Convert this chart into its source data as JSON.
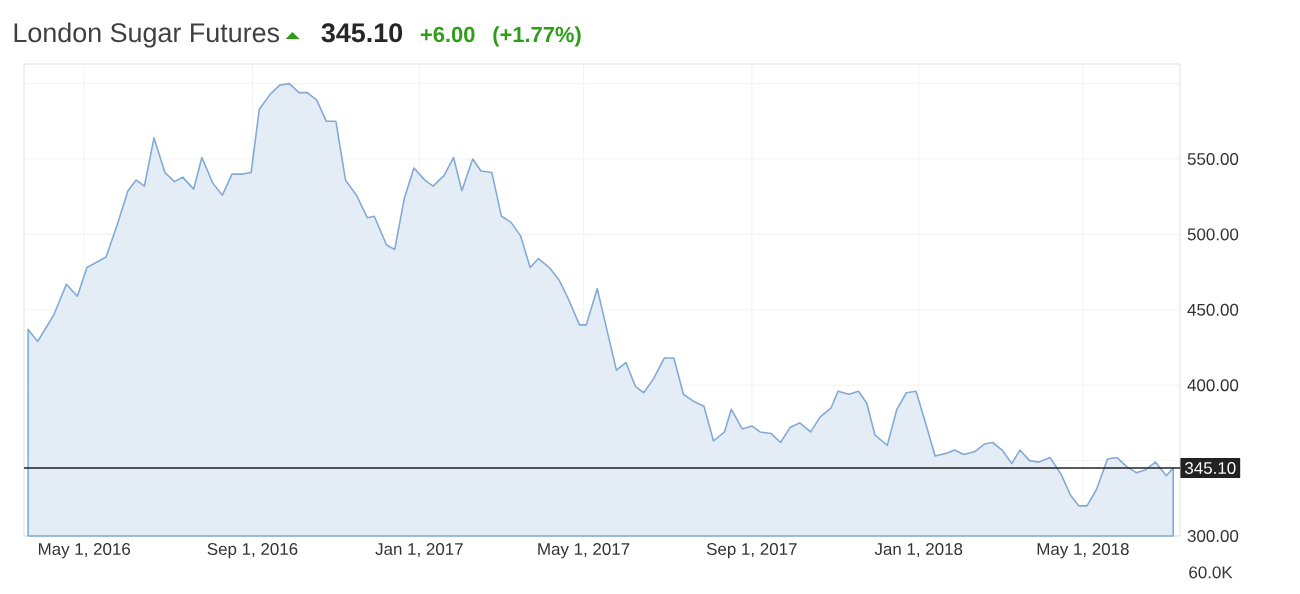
{
  "chart_data": {
    "type": "area",
    "title": "London Sugar Futures",
    "annotations": [
      "345.10",
      "+6.00",
      "(+1.77%)",
      "60.0K"
    ],
    "x": [
      "2016-03-21",
      "2016-03-28",
      "2016-04-09",
      "2016-04-18",
      "2016-04-26",
      "2016-05-03",
      "2016-05-17",
      "2016-05-25",
      "2016-06-02",
      "2016-06-08",
      "2016-06-14",
      "2016-06-21",
      "2016-06-29",
      "2016-07-06",
      "2016-07-12",
      "2016-07-20",
      "2016-07-26",
      "2016-08-03",
      "2016-08-10",
      "2016-08-17",
      "2016-08-25",
      "2016-08-31",
      "2016-09-06",
      "2016-09-14",
      "2016-09-21",
      "2016-09-28",
      "2016-10-05",
      "2016-10-11",
      "2016-10-18",
      "2016-10-25",
      "2016-11-01",
      "2016-11-08",
      "2016-11-16",
      "2016-11-24",
      "2016-11-29",
      "2016-12-08",
      "2016-12-14",
      "2016-12-21",
      "2016-12-28",
      "2017-01-05",
      "2017-01-11",
      "2017-01-19",
      "2017-01-26",
      "2017-02-01",
      "2017-02-09",
      "2017-02-15",
      "2017-02-23",
      "2017-03-02",
      "2017-03-09",
      "2017-03-16",
      "2017-03-23",
      "2017-03-29",
      "2017-04-06",
      "2017-04-13",
      "2017-04-20",
      "2017-04-28",
      "2017-05-03",
      "2017-05-11",
      "2017-05-18",
      "2017-05-25",
      "2017-06-01",
      "2017-06-08",
      "2017-06-14",
      "2017-06-21",
      "2017-06-29",
      "2017-07-06",
      "2017-07-13",
      "2017-07-21",
      "2017-07-28",
      "2017-08-04",
      "2017-08-12",
      "2017-08-17",
      "2017-08-25",
      "2017-09-01",
      "2017-09-07",
      "2017-09-15",
      "2017-09-22",
      "2017-09-29",
      "2017-10-06",
      "2017-10-14",
      "2017-10-21",
      "2017-10-29",
      "2017-11-03",
      "2017-11-11",
      "2017-11-18",
      "2017-11-24",
      "2017-11-30",
      "2017-12-09",
      "2017-12-16",
      "2017-12-23",
      "2017-12-30",
      "2018-01-06",
      "2018-01-13",
      "2018-01-22",
      "2018-01-27",
      "2018-02-03",
      "2018-02-11",
      "2018-02-18",
      "2018-02-24",
      "2018-03-03",
      "2018-03-10",
      "2018-03-16",
      "2018-03-23",
      "2018-03-30",
      "2018-04-07",
      "2018-04-15",
      "2018-04-22",
      "2018-04-28",
      "2018-05-04",
      "2018-05-11",
      "2018-05-19",
      "2018-05-26",
      "2018-06-02",
      "2018-06-09",
      "2018-06-16",
      "2018-06-23",
      "2018-07-01",
      "2018-07-06"
    ],
    "series": [
      {
        "color": "#e4edf6",
        "values": [
          437,
          429,
          447,
          467,
          459,
          478,
          485,
          506,
          529,
          536,
          532,
          564,
          541,
          535,
          538,
          530,
          551,
          534,
          526,
          540,
          540,
          541,
          583,
          593,
          599,
          600,
          594,
          594,
          589,
          575,
          575,
          536,
          526,
          511,
          512,
          493,
          490,
          524,
          544,
          536,
          532,
          539,
          551,
          529,
          550,
          542,
          541,
          512,
          508,
          499,
          478,
          484,
          478,
          470,
          457,
          440,
          440,
          464,
          437,
          410,
          415,
          399,
          395,
          404,
          418,
          418,
          394,
          389,
          386,
          363,
          369,
          384,
          371,
          373,
          369,
          368,
          362,
          372,
          375,
          369,
          379,
          385,
          396,
          394,
          396,
          388,
          367,
          360,
          384,
          395,
          396,
          375,
          353,
          355,
          357,
          354,
          356,
          361,
          362,
          357,
          348,
          357,
          350,
          349,
          352,
          341,
          327,
          320,
          320,
          331,
          351,
          352,
          346,
          342,
          344,
          349,
          340,
          345
        ]
      }
    ],
    "xlim": [
      "2016-03-18",
      "2018-07-11"
    ],
    "xticks": [
      {
        "value": "2016-05-01",
        "label": "May 1, 2016"
      },
      {
        "value": "2016-09-01",
        "label": "Sep 1, 2016"
      },
      {
        "value": "2017-01-01",
        "label": "Jan 1, 2017"
      },
      {
        "value": "2017-05-01",
        "label": "May 1, 2017"
      },
      {
        "value": "2017-09-01",
        "label": "Sep 1, 2017"
      },
      {
        "value": "2018-01-01",
        "label": "Jan 1, 2018"
      },
      {
        "value": "2018-05-01",
        "label": "May 1, 2018"
      }
    ],
    "ylim": [
      300,
      613
    ],
    "yticks": [
      {
        "value": 300,
        "label": "300.00"
      },
      {
        "value": 350,
        "label": null
      },
      {
        "value": 400,
        "label": "400.00"
      },
      {
        "value": 450,
        "label": "450.00"
      },
      {
        "value": 500,
        "label": "500.00"
      },
      {
        "value": 550,
        "label": "550.00"
      },
      {
        "value": 600,
        "label": null
      }
    ],
    "ref_lines": [
      {
        "axis": "y",
        "value": 345.1,
        "label": "345.10",
        "color": "#222222"
      }
    ],
    "grid": true
  }
}
